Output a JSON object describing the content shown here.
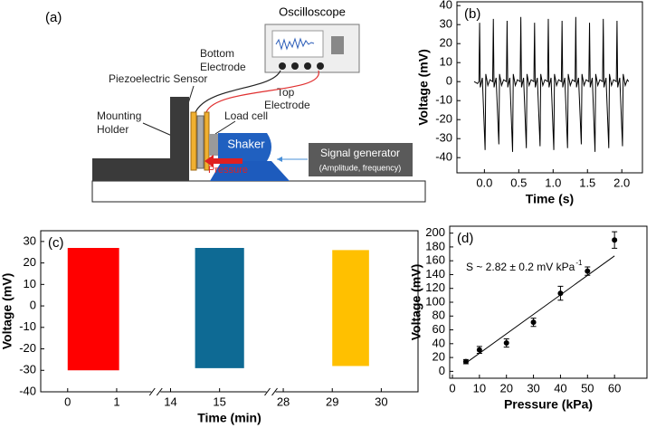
{
  "diagram": {
    "panel_label": "(a)",
    "oscilloscope": "Oscilloscope",
    "bottom_electrode": [
      "Bottom",
      "Electrode"
    ],
    "sensor": "Piezoelectric Sensor",
    "top_electrode": [
      "Top",
      "Electrode"
    ],
    "load_cell": "Load cell",
    "holder": [
      "Mounting",
      "Holder"
    ],
    "shaker": "Shaker",
    "pressure": "Pressure",
    "signal_generator": [
      "Signal generator",
      "(Amplitude, frequency)"
    ]
  },
  "chart_data": [
    {
      "type": "line",
      "panel_label": "(b)",
      "xlabel": "Time (s)",
      "ylabel": "Voltage (mV)",
      "color": "#000000",
      "x": [
        -0.15,
        -0.1,
        -0.08,
        -0.07,
        -0.06,
        -0.03,
        0.01,
        0.02,
        0.05,
        0.08,
        0.12,
        0.13,
        0.14,
        0.17,
        0.21,
        0.22,
        0.25,
        0.28,
        0.32,
        0.33,
        0.34,
        0.37,
        0.41,
        0.42,
        0.45,
        0.48,
        0.52,
        0.53,
        0.54,
        0.57,
        0.61,
        0.62,
        0.65,
        0.68,
        0.72,
        0.73,
        0.74,
        0.77,
        0.81,
        0.82,
        0.85,
        0.88,
        0.92,
        0.93,
        0.94,
        0.97,
        1.01,
        1.02,
        1.05,
        1.08,
        1.12,
        1.13,
        1.14,
        1.17,
        1.21,
        1.22,
        1.25,
        1.28,
        1.32,
        1.33,
        1.34,
        1.37,
        1.41,
        1.42,
        1.45,
        1.48,
        1.52,
        1.53,
        1.54,
        1.57,
        1.61,
        1.62,
        1.65,
        1.68,
        1.72,
        1.73,
        1.74,
        1.77,
        1.81,
        1.82,
        1.85,
        1.88,
        1.92,
        1.93,
        1.94,
        1.97,
        2.01,
        2.02,
        2.05,
        2.08,
        2.1
      ],
      "values": [
        0,
        -1,
        0,
        31,
        -3,
        2,
        -36,
        4,
        -2,
        1,
        0,
        33,
        -3,
        2,
        -33,
        4,
        -2,
        1,
        0,
        32,
        -3,
        2,
        -37,
        4,
        -2,
        1,
        0,
        34,
        -3,
        2,
        -35,
        4,
        -2,
        1,
        0,
        31,
        -3,
        2,
        -34,
        4,
        -2,
        1,
        0,
        33,
        -3,
        2,
        -36,
        4,
        -2,
        1,
        0,
        32,
        -3,
        2,
        -35,
        4,
        -2,
        1,
        0,
        34,
        -3,
        2,
        -33,
        4,
        -2,
        1,
        0,
        31,
        -3,
        2,
        -37,
        4,
        -2,
        1,
        0,
        33,
        -3,
        2,
        -35,
        4,
        -2,
        1,
        0,
        32,
        -3,
        2,
        -34,
        4,
        -2,
        1,
        0
      ],
      "xlim": [
        -0.4,
        2.3
      ],
      "xticks": [
        {
          "value": 0,
          "label": "0.0"
        },
        0.5,
        {
          "value": 1,
          "label": "1.0"
        },
        1.5,
        {
          "value": 2,
          "label": "2.0"
        }
      ],
      "ylim": [
        -48,
        42
      ],
      "yticks": [
        -40,
        -30,
        -20,
        -10,
        0,
        10,
        20,
        30,
        40
      ]
    },
    {
      "type": "band",
      "panel_label": "(c)",
      "xlabel": "Time (min)",
      "ylabel": "Voltage (mV)",
      "xsegments": [
        [
          -0.55,
          1.8
        ],
        [
          13.7,
          16.05
        ],
        [
          27.75,
          30.75
        ]
      ],
      "xticks": [
        0,
        1,
        14,
        15,
        28,
        29,
        30
      ],
      "ylim": [
        -40,
        35
      ],
      "yticks": [
        -40,
        -30,
        -20,
        -10,
        0,
        10,
        20,
        30
      ],
      "series": [
        {
          "color": "#ff0000",
          "x": [
            0,
            1.05
          ],
          "upper": [
            27,
            27
          ],
          "lower": [
            -30,
            -30
          ]
        },
        {
          "color": "#0e6a94",
          "x": [
            14.5,
            15.5
          ],
          "upper": [
            27,
            27
          ],
          "lower": [
            -29,
            -29
          ]
        },
        {
          "color": "#ffc000",
          "x": [
            29,
            29.75
          ],
          "upper": [
            26,
            26
          ],
          "lower": [
            -28,
            -28
          ]
        }
      ]
    },
    {
      "type": "scatter",
      "panel_label": "(d)",
      "xlabel": "Pressure (kPa)",
      "ylabel": "Voltage (mV)",
      "color": "#000000",
      "x": [
        5,
        10,
        20,
        30,
        40,
        50,
        60
      ],
      "values": [
        14,
        31,
        41,
        71,
        113,
        145,
        190
      ],
      "errors": [
        3,
        5,
        6,
        6,
        10,
        6,
        12
      ],
      "fit": {
        "x": [
          5,
          60
        ],
        "values": [
          12,
          167
        ]
      },
      "annotation": "S ~ 2.82 ± 0.2 mV kPa",
      "annotation_sup": "-1",
      "xlim": [
        -1,
        72
      ],
      "xticks": [
        0,
        10,
        20,
        30,
        40,
        50,
        60
      ],
      "ylim": [
        -10,
        210
      ],
      "yticks": [
        0,
        20,
        40,
        60,
        80,
        100,
        120,
        140,
        160,
        180,
        200
      ]
    }
  ]
}
